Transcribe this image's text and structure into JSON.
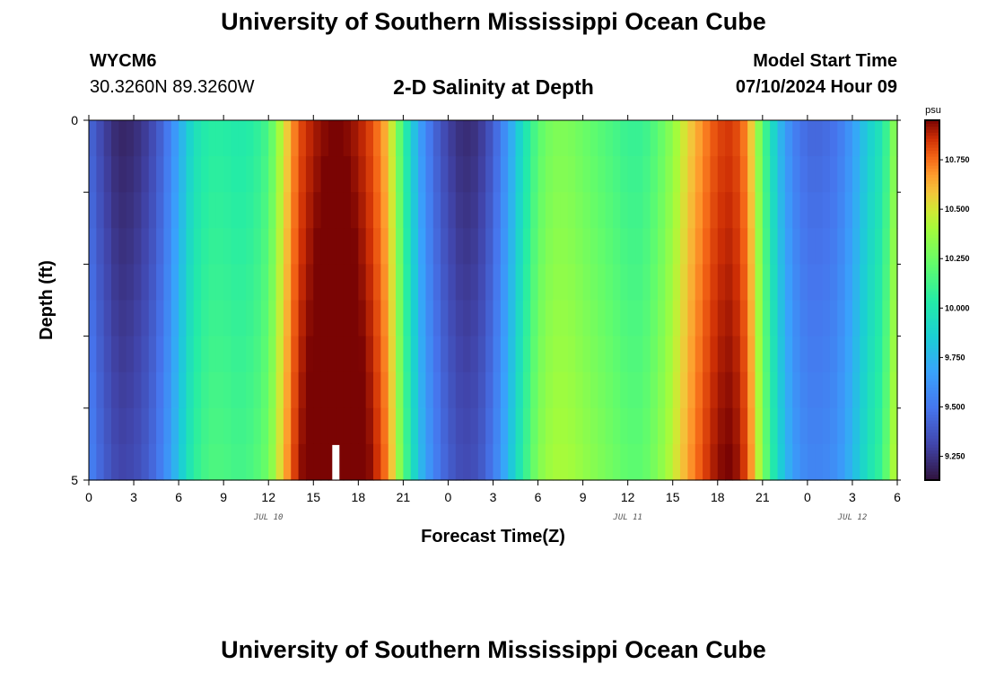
{
  "header": {
    "title": "University of Southern Mississippi Ocean Cube",
    "station_id": "WYCM6",
    "coordinates": "30.3260N  89.3260W",
    "plot_title": "2-D Salinity at Depth",
    "start_label": "Model Start Time",
    "start_value": "07/10/2024 Hour 09"
  },
  "footer": {
    "title": "University of Southern Mississippi Ocean Cube"
  },
  "chart_data": {
    "type": "heatmap",
    "title": "2-D Salinity at Depth",
    "xlabel": "Forecast Time(Z)",
    "ylabel": "Depth (ft)",
    "x_hours_range": [
      0,
      54
    ],
    "x_tick_hours": [
      0,
      3,
      6,
      9,
      12,
      15,
      18,
      21,
      24,
      27,
      30,
      33,
      36,
      39,
      42,
      45,
      48,
      51,
      54
    ],
    "x_tick_labels": [
      "0",
      "3",
      "6",
      "9",
      "12",
      "15",
      "18",
      "21",
      "0",
      "3",
      "6",
      "9",
      "12",
      "15",
      "18",
      "21",
      "0",
      "3",
      "6"
    ],
    "date_labels": [
      {
        "hour": 12,
        "text": "JUL 10"
      },
      {
        "hour": 36,
        "text": "JUL 11"
      },
      {
        "hour": 60,
        "text": "JUL 12"
      }
    ],
    "y_range": [
      0,
      5
    ],
    "y_tick_labels": [
      {
        "depth": 0,
        "text": "0"
      },
      {
        "depth": 5,
        "text": "5"
      }
    ],
    "depth_rows": [
      0.25,
      0.75,
      1.25,
      1.75,
      2.25,
      2.75,
      3.25,
      3.75,
      4.25,
      4.75
    ],
    "profile_hours": [
      0,
      1,
      2,
      3,
      4,
      5,
      6,
      7,
      8,
      9,
      10,
      11,
      12,
      13,
      14,
      15,
      16,
      17,
      18,
      19,
      20,
      21,
      22,
      23,
      24,
      25,
      26,
      27,
      28,
      29,
      30,
      31,
      32,
      33,
      34,
      35,
      36,
      37,
      38,
      39,
      40,
      41,
      42,
      43,
      44,
      45,
      46,
      47,
      48,
      49,
      50,
      51,
      52,
      53,
      54
    ],
    "surface_salinity": [
      9.45,
      9.3,
      9.2,
      9.22,
      9.3,
      9.45,
      9.7,
      9.95,
      10.05,
      10.05,
      10.02,
      10.05,
      10.15,
      10.5,
      10.8,
      10.9,
      10.95,
      10.95,
      10.9,
      10.8,
      10.6,
      10.1,
      9.7,
      9.45,
      9.3,
      9.22,
      9.25,
      9.4,
      9.65,
      9.95,
      10.2,
      10.3,
      10.3,
      10.25,
      10.2,
      10.15,
      10.1,
      10.1,
      10.2,
      10.35,
      10.55,
      10.7,
      10.82,
      10.85,
      10.7,
      10.2,
      9.8,
      9.55,
      9.45,
      9.45,
      9.5,
      9.65,
      9.85,
      10.0,
      10.4
    ],
    "depth_increment_per_row": 0.012,
    "missing_cells": [
      {
        "hour": 16.5,
        "depth_from": 4.5,
        "depth_to": 5.0
      }
    ],
    "colorbar": {
      "unit": "psu",
      "min": 9.13,
      "max": 10.95,
      "tick_values": [
        9.25,
        9.5,
        9.75,
        10.0,
        10.25,
        10.5,
        10.75
      ],
      "tick_labels": [
        "9.250",
        "9.500",
        "9.750",
        "10.000",
        "10.250",
        "10.500",
        "10.750"
      ]
    }
  }
}
